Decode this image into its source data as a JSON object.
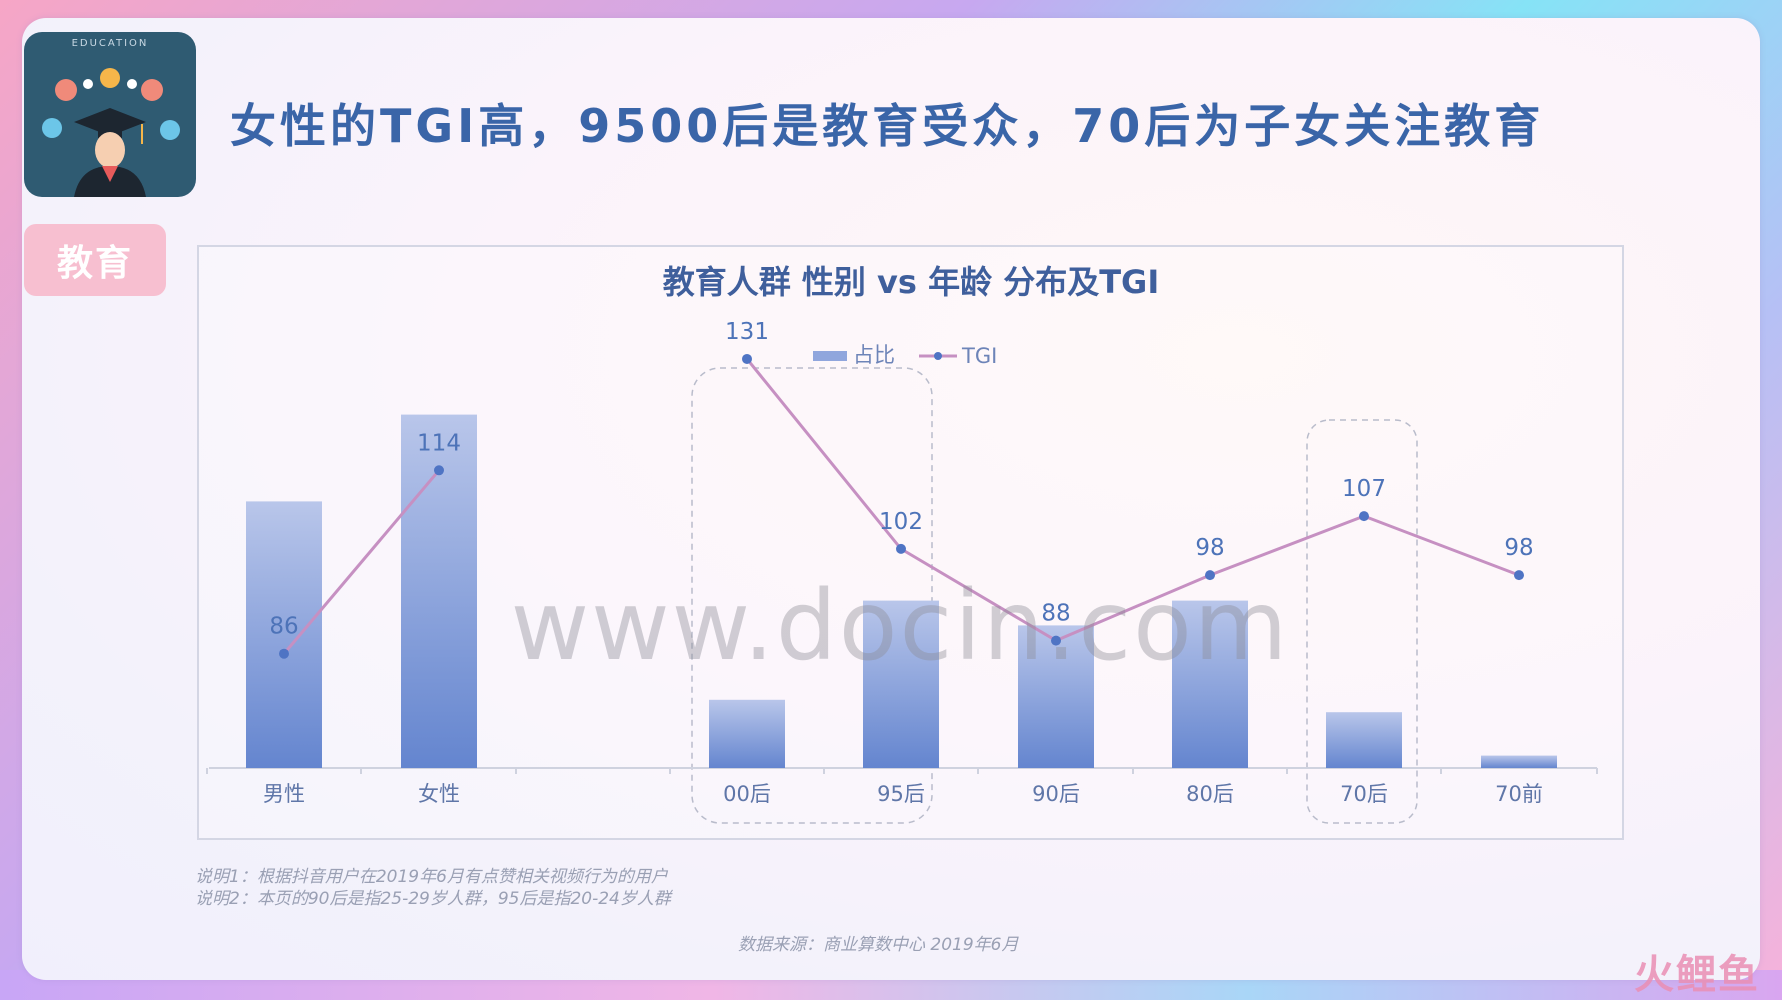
{
  "logo": {
    "caption": "EDUCATION"
  },
  "tag": {
    "label": "教育"
  },
  "headline": "女性的TGI高，9500后是教育受众，70后为子女关注教育",
  "chart_data": {
    "type": "bar",
    "title": "教育人群 性别 vs 年龄 分布及TGI",
    "legend": {
      "placement": "top-center",
      "bar_label": "占比",
      "line_label": "TGI"
    },
    "categories": [
      "男性",
      "女性",
      "00后",
      "95后",
      "90后",
      "80后",
      "70后",
      "70前"
    ],
    "series": [
      {
        "name": "占比",
        "type": "bar",
        "values": [
          43,
          57,
          11,
          27,
          23,
          27,
          9,
          2
        ]
      },
      {
        "name": "TGI",
        "type": "line",
        "values": [
          86,
          114,
          131,
          102,
          88,
          98,
          107,
          98
        ]
      }
    ],
    "highlight_groups": [
      [
        "00后",
        "95后"
      ],
      [
        "70后"
      ]
    ],
    "colors": {
      "bar_top": "#b9c6ea",
      "bar_bottom": "#6485cf",
      "line": "#c690c2",
      "point": "#4f74c4",
      "label": "#4d73b8"
    },
    "ylim": [
      0,
      60
    ]
  },
  "notes": {
    "note1": "说明1：根据抖音用户在2019年6月有点赞相关视频行为的用户",
    "note2": "说明2：本页的90后是指25-29岁人群，95后是指20-24岁人群",
    "source": "数据来源：商业算数中心 2019年6月"
  },
  "watermark": "www.docin.com",
  "corner_logo": "火鲤鱼"
}
